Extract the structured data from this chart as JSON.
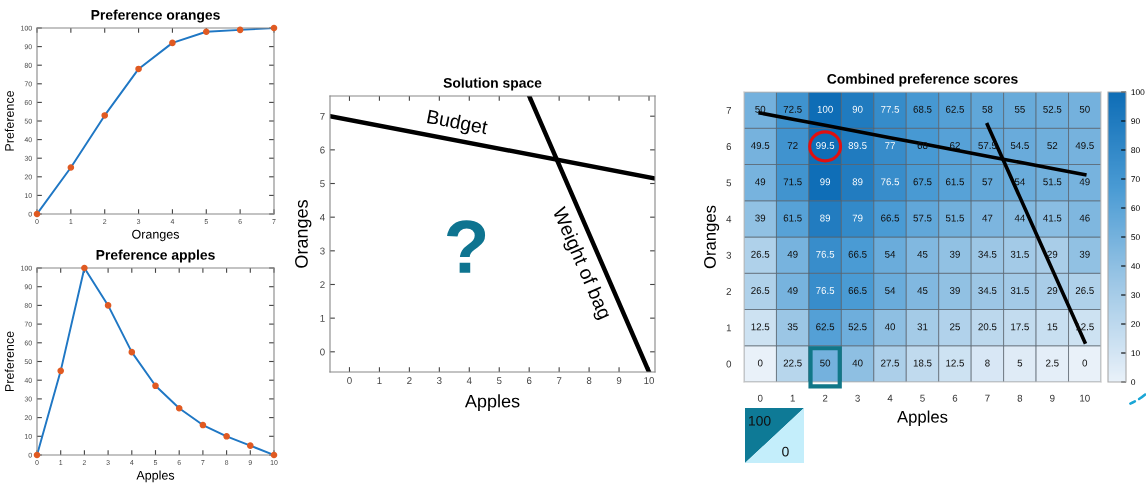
{
  "chart_data": [
    {
      "type": "line",
      "title": "Preference oranges",
      "xlabel": "Oranges",
      "ylabel": "Preference",
      "x": [
        0,
        1,
        2,
        3,
        4,
        5,
        6,
        7
      ],
      "xlim": [
        0,
        7
      ],
      "xticks": [
        0,
        1,
        2,
        3,
        4,
        5,
        6,
        7
      ],
      "ylim": [
        0,
        100
      ],
      "yticks": [
        0,
        10,
        20,
        30,
        40,
        50,
        60,
        70,
        80,
        90,
        100
      ],
      "grid": false,
      "series": [
        {
          "color": "#1f77c4",
          "values": [
            0,
            25,
            53,
            78,
            92,
            98,
            99,
            100
          ]
        },
        {
          "type": "scatter",
          "color": "#e05a22",
          "values": [
            0,
            25,
            53,
            78,
            92,
            98,
            99,
            100
          ]
        }
      ]
    },
    {
      "type": "line",
      "title": "Preference apples",
      "xlabel": "Apples",
      "ylabel": "Preference",
      "x": [
        0,
        1,
        2,
        3,
        4,
        5,
        6,
        7,
        8,
        9,
        10
      ],
      "xlim": [
        0,
        10
      ],
      "xticks": [
        0,
        1,
        2,
        3,
        4,
        5,
        6,
        7,
        8,
        9,
        10
      ],
      "ylim": [
        0,
        100
      ],
      "yticks": [
        0,
        10,
        20,
        30,
        40,
        50,
        60,
        70,
        80,
        90,
        100
      ],
      "grid": false,
      "series": [
        {
          "color": "#1f77c4",
          "values": [
            0,
            45,
            100,
            80,
            55,
            37,
            25,
            16,
            10,
            5,
            0
          ]
        },
        {
          "type": "scatter",
          "color": "#e05a22",
          "values": [
            0,
            45,
            100,
            80,
            55,
            37,
            25,
            16,
            10,
            5,
            0
          ]
        }
      ]
    },
    {
      "type": "line",
      "title": "Solution space",
      "xlabel": "Apples",
      "ylabel": "Oranges",
      "xlim": [
        -0.65,
        10.2
      ],
      "xticks": [
        0,
        1,
        2,
        3,
        4,
        5,
        6,
        7,
        8,
        9,
        10
      ],
      "ylim": [
        -0.6,
        7.6
      ],
      "yticks": [
        0,
        1,
        2,
        3,
        4,
        5,
        6,
        7
      ],
      "grid": false,
      "annotations": [
        "?"
      ],
      "series": [
        {
          "name": "Budget",
          "color": "#000000",
          "x": [
            -0.65,
            10.2
          ],
          "values": [
            7.0,
            5.15
          ]
        },
        {
          "name": "Weight of bag",
          "color": "#000000",
          "x": [
            6.0,
            10.0
          ],
          "values": [
            7.6,
            -0.6
          ]
        }
      ]
    },
    {
      "type": "heatmap",
      "title": "Combined preference scores",
      "xlabel": "Apples",
      "ylabel": "Oranges",
      "categories": [
        "0",
        "1",
        "2",
        "3",
        "4",
        "5",
        "6",
        "7",
        "8",
        "9",
        "10"
      ],
      "y_categories": [
        "7",
        "6",
        "5",
        "4",
        "3",
        "2",
        "1",
        "0"
      ],
      "cells": [
        [
          50,
          72.5,
          100,
          90,
          77.5,
          68.5,
          62.5,
          58,
          55,
          52.5,
          50
        ],
        [
          49.5,
          72,
          99.5,
          89.5,
          77,
          68,
          62,
          57.5,
          54.5,
          52,
          49.5
        ],
        [
          49,
          71.5,
          99,
          89,
          76.5,
          67.5,
          61.5,
          57,
          54,
          51.5,
          49
        ],
        [
          39,
          61.5,
          89,
          79,
          66.5,
          57.5,
          51.5,
          47,
          44,
          41.5,
          46
        ],
        [
          26.5,
          49,
          76.5,
          66.5,
          54,
          45,
          39,
          34.5,
          31.5,
          29,
          39
        ],
        [
          26.5,
          49,
          76.5,
          66.5,
          54,
          45,
          39,
          34.5,
          31.5,
          29,
          26.5
        ],
        [
          12.5,
          35,
          62.5,
          52.5,
          40,
          31,
          25,
          20.5,
          17.5,
          15,
          12.5
        ],
        [
          0,
          22.5,
          50,
          40,
          27.5,
          18.5,
          12.5,
          8,
          5,
          2.5,
          0
        ]
      ],
      "data_labels": true,
      "clim": [
        0,
        100
      ],
      "cticks": [
        0,
        10,
        20,
        30,
        40,
        50,
        60,
        70,
        80,
        90,
        100
      ],
      "annotations": [
        "100",
        "0"
      ],
      "series": [
        {
          "type": "line",
          "color": "#000000",
          "values": [
            0.08,
            0.25,
            0.42,
            0.59,
            0.76,
            0.93,
            1.1,
            1.27,
            1.44,
            1.61,
            1.78
          ],
          "value_labels": [
            null,
            null,
            null,
            null,
            null,
            null,
            null,
            null,
            null,
            null,
            null
          ]
        },
        {
          "type": "line",
          "color": "#000000",
          "values": [
            null,
            null,
            null,
            null,
            null,
            null,
            null,
            0.4,
            2.4,
            4.4,
            6.4
          ],
          "value_labels": [
            null,
            null,
            null,
            null,
            null,
            null,
            null,
            null,
            null,
            null,
            null
          ]
        }
      ]
    }
  ]
}
